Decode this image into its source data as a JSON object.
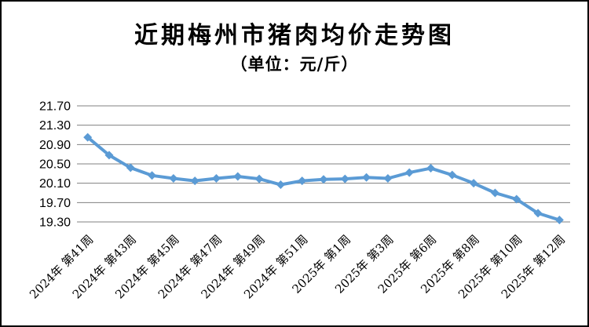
{
  "header": {
    "title": "近期梅州市猪肉均价走势图",
    "subtitle": "（单位：元/斤）"
  },
  "colors": {
    "line": "#5B9BD5",
    "marker": "#5B9BD5",
    "gridline": "#808080",
    "text": "#000000",
    "background": "#FFFFFF",
    "frame_border": "#000000"
  },
  "chart_data": {
    "type": "line",
    "title": "近期梅州市猪肉均价走势图",
    "subtitle": "（单位：元/斤）",
    "unit": "元/斤",
    "values": [
      21.05,
      20.68,
      20.42,
      20.26,
      20.2,
      20.15,
      20.2,
      20.24,
      20.19,
      20.07,
      20.15,
      20.18,
      20.19,
      20.22,
      20.2,
      20.32,
      20.41,
      20.27,
      20.1,
      19.9,
      19.77,
      19.48,
      19.34
    ],
    "x_tick_labels": [
      "2024年 第41周",
      "2024年 第43周",
      "2024年 第45周",
      "2024年 第47周",
      "2024年 第49周",
      "2024年 第51周",
      "2025年 第1周",
      "2025年 第3周",
      "2025年 第6周",
      "2025年 第8周",
      "2025年 第10周",
      "2025年 第12周"
    ],
    "x_tick_every_n_points": 2,
    "x_tick_rotation_deg": -45,
    "y_tick_labels": [
      "21.70",
      "21.30",
      "20.90",
      "20.50",
      "20.10",
      "19.70",
      "19.30"
    ],
    "ylim": [
      19.3,
      21.7
    ],
    "grid": true,
    "legend": "none",
    "marker_shape": "diamond"
  }
}
